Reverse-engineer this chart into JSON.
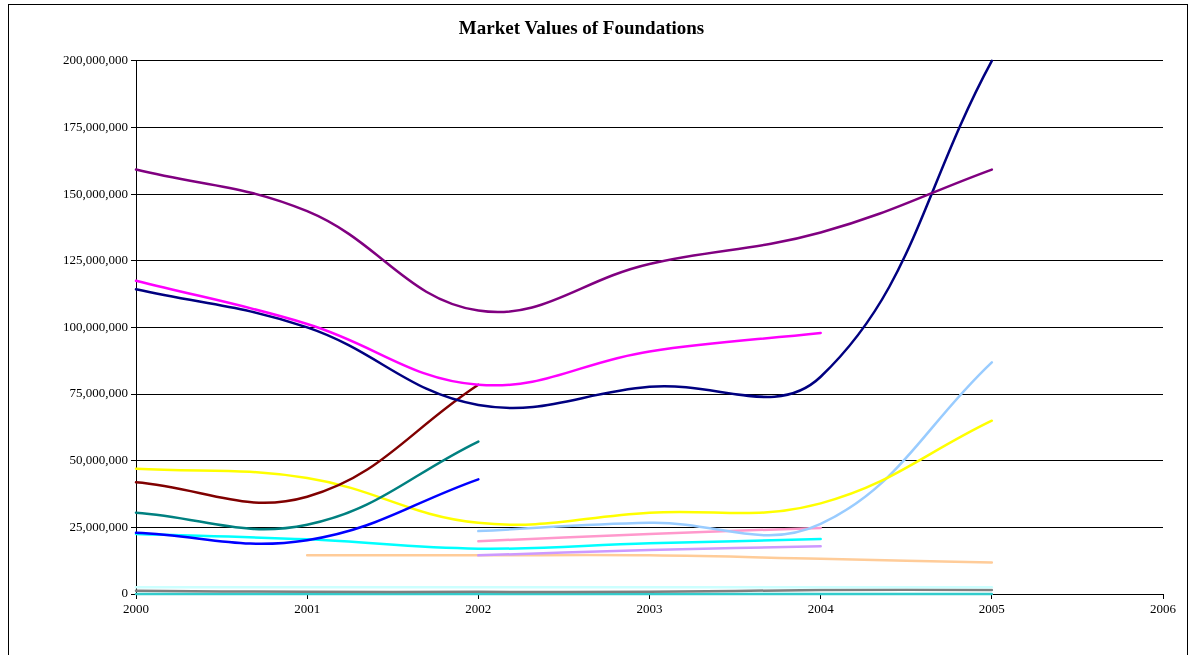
{
  "chart_data": {
    "type": "line",
    "title": "Market Values of Foundations",
    "x": [
      2000,
      2001,
      2002,
      2003,
      2004,
      2005
    ],
    "xlim": [
      2000,
      2006
    ],
    "xticks": [
      2000,
      2001,
      2002,
      2003,
      2004,
      2005,
      2006
    ],
    "ylim": [
      0,
      200000000
    ],
    "yticks": [
      {
        "value": 0,
        "label": "0"
      },
      {
        "value": 25000000,
        "label": "25,000,000"
      },
      {
        "value": 50000000,
        "label": "50,000,000"
      },
      {
        "value": 75000000,
        "label": "75,000,000"
      },
      {
        "value": 100000000,
        "label": "100,000,000"
      },
      {
        "value": 125000000,
        "label": "125,000,000"
      },
      {
        "value": 150000000,
        "label": "150,000,000"
      },
      {
        "value": 175000000,
        "label": "175,000,000"
      },
      {
        "value": 200000000,
        "label": "200,000,000"
      }
    ],
    "grid": "y",
    "legend": false,
    "marker": "none",
    "line_style": "solid",
    "series": [
      {
        "color": "#800080",
        "values": [
          159200000,
          143600000,
          106300000,
          123800000,
          135600000,
          159200000
        ]
      },
      {
        "color": "#ff00ff",
        "values": [
          117500000,
          101300000,
          78500000,
          91000000,
          97900000,
          null
        ]
      },
      {
        "color": "#000080",
        "values": [
          114300000,
          100000000,
          70900000,
          77700000,
          81500000,
          200000000
        ]
      },
      {
        "color": "#800000",
        "values": [
          41900000,
          36500000,
          78500000,
          null,
          null,
          null
        ]
      },
      {
        "color": "#008080",
        "values": [
          30500000,
          26000000,
          57200000,
          null,
          null,
          null
        ]
      },
      {
        "color": "#0000ff",
        "values": [
          23000000,
          20200000,
          43000000,
          null,
          null,
          null
        ]
      },
      {
        "color": "#ffff00",
        "values": [
          47000000,
          43500000,
          26700000,
          30500000,
          34000000,
          65000000
        ]
      },
      {
        "color": "#99ccff",
        "values": [
          null,
          null,
          23600000,
          26700000,
          26300000,
          86900000
        ]
      },
      {
        "color": "#ff99cc",
        "values": [
          null,
          null,
          19800000,
          22500000,
          24800000,
          null
        ]
      },
      {
        "color": "#00ffff",
        "values": [
          22500000,
          20500000,
          17000000,
          19000000,
          20600000,
          null
        ]
      },
      {
        "color": "#cc99ff",
        "values": [
          null,
          null,
          14500000,
          16500000,
          17900000,
          null
        ]
      },
      {
        "color": "#ffcc99",
        "values": [
          null,
          14500000,
          14500000,
          14500000,
          13200000,
          11800000
        ]
      },
      {
        "color": "#ccffff",
        "values": [
          2500000,
          2500000,
          2500000,
          2500000,
          2500000,
          2500000
        ]
      },
      {
        "color": "#808080",
        "values": [
          1200000,
          800000,
          800000,
          800000,
          1500000,
          1500000
        ]
      },
      {
        "color": "#33cccc",
        "values": [
          0,
          0,
          0,
          0,
          0,
          0
        ]
      }
    ]
  }
}
